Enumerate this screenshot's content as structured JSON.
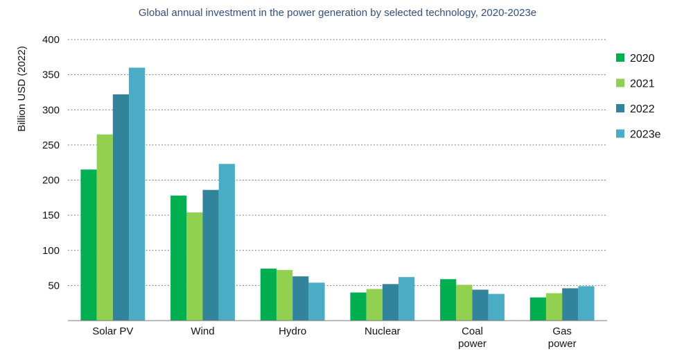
{
  "chart_data": {
    "type": "bar",
    "title": "Global annual investment in the power generation by selected technology, 2020-2023e",
    "ylabel": "Billion USD (2022)",
    "xlabel": "",
    "ylim": [
      0,
      400
    ],
    "yticks": [
      50,
      100,
      150,
      200,
      250,
      300,
      350,
      400
    ],
    "grid": true,
    "legend_position": "right",
    "categories": [
      [
        "Solar PV"
      ],
      [
        "Wind"
      ],
      [
        "Hydro"
      ],
      [
        "Nuclear"
      ],
      [
        "Coal",
        "power"
      ],
      [
        "Gas",
        "power"
      ]
    ],
    "series": [
      {
        "name": "2020",
        "color": "#00b050",
        "values": [
          215,
          178,
          74,
          40,
          59,
          33
        ]
      },
      {
        "name": "2021",
        "color": "#92d050",
        "values": [
          265,
          154,
          72,
          45,
          51,
          39
        ]
      },
      {
        "name": "2022",
        "color": "#31849b",
        "values": [
          322,
          186,
          63,
          52,
          44,
          46
        ]
      },
      {
        "name": "2023e",
        "color": "#4bacc6",
        "values": [
          360,
          223,
          54,
          62,
          38,
          49
        ]
      }
    ]
  }
}
